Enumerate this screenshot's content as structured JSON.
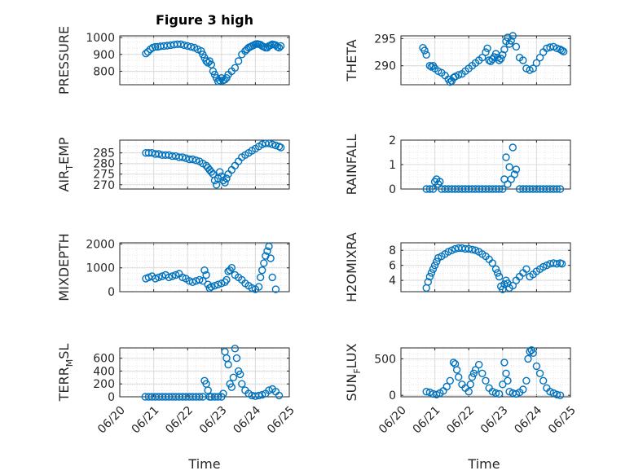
{
  "figure": {
    "title": "Figure 3 high",
    "marker_color": "#0072bd",
    "axis_color": "#262626",
    "grid": true
  },
  "chart_data": [
    {
      "id": "pressure",
      "type": "scatter",
      "ylabel": "PRESSURE",
      "title": "Figure 3 high",
      "xlim": [
        0,
        5
      ],
      "ylim": [
        720,
        1010
      ],
      "yticks": [
        800,
        900,
        1000
      ],
      "yticklabels": [
        "800",
        "900",
        "1000"
      ],
      "x": [
        0.77,
        0.83,
        0.9,
        0.97,
        1.05,
        1.12,
        1.2,
        1.3,
        1.4,
        1.5,
        1.6,
        1.7,
        1.8,
        1.9,
        2.0,
        2.1,
        2.2,
        2.3,
        2.4,
        2.45,
        2.5,
        2.55,
        2.6,
        2.65,
        2.7,
        2.75,
        2.8,
        2.85,
        2.9,
        2.95,
        3.0,
        3.05,
        3.1,
        3.15,
        3.2,
        3.3,
        3.4,
        3.5,
        3.6,
        3.7,
        3.75,
        3.8,
        3.85,
        3.9,
        3.95,
        4.0,
        4.05,
        4.1,
        4.15,
        4.2,
        4.25,
        4.3,
        4.35,
        4.4,
        4.45,
        4.5,
        4.55,
        4.6,
        4.65,
        4.7,
        4.75
      ],
      "y": [
        905,
        915,
        930,
        940,
        945,
        945,
        948,
        950,
        952,
        955,
        958,
        960,
        960,
        955,
        950,
        945,
        940,
        930,
        920,
        900,
        880,
        860,
        850,
        860,
        840,
        800,
        780,
        760,
        740,
        745,
        760,
        745,
        750,
        760,
        780,
        800,
        820,
        860,
        900,
        920,
        930,
        940,
        945,
        950,
        955,
        960,
        962,
        960,
        958,
        950,
        945,
        940,
        940,
        950,
        955,
        960,
        958,
        955,
        945,
        940,
        950
      ]
    },
    {
      "id": "theta",
      "type": "scatter",
      "ylabel": "THETA",
      "xlim": [
        0,
        5
      ],
      "ylim": [
        286.5,
        295.5
      ],
      "yticks": [
        290,
        295
      ],
      "yticklabels": [
        "290",
        "295"
      ],
      "x": [
        0.65,
        0.7,
        0.75,
        0.85,
        0.9,
        0.95,
        1.0,
        1.1,
        1.2,
        1.3,
        1.4,
        1.45,
        1.5,
        1.55,
        1.6,
        1.7,
        1.8,
        1.9,
        2.0,
        2.1,
        2.2,
        2.3,
        2.4,
        2.5,
        2.55,
        2.6,
        2.65,
        2.7,
        2.75,
        2.8,
        2.85,
        2.9,
        2.95,
        3.0,
        3.05,
        3.1,
        3.15,
        3.2,
        3.25,
        3.3,
        3.4,
        3.5,
        3.6,
        3.7,
        3.8,
        3.9,
        4.0,
        4.1,
        4.2,
        4.3,
        4.4,
        4.5,
        4.6,
        4.7,
        4.75,
        4.8
      ],
      "y": [
        293.3,
        292.8,
        292.0,
        290.0,
        289.8,
        290.0,
        289.5,
        289.0,
        288.7,
        288.2,
        287.5,
        287.0,
        287.2,
        287.8,
        288.0,
        288.3,
        288.5,
        289.0,
        289.5,
        290.0,
        290.5,
        291.0,
        291.5,
        292.5,
        293.2,
        291.0,
        290.8,
        291.2,
        291.6,
        292.2,
        291.5,
        291.0,
        291.3,
        292.0,
        293.0,
        294.5,
        295.2,
        294.0,
        294.6,
        295.5,
        293.5,
        291.5,
        291.0,
        289.5,
        289.2,
        289.5,
        290.5,
        291.5,
        292.5,
        293.2,
        293.4,
        293.5,
        293.2,
        293.0,
        292.8,
        292.6
      ]
    },
    {
      "id": "air_temp",
      "type": "scatter",
      "ylabel": "AIR_TEMP",
      "xlim": [
        0,
        5
      ],
      "ylim": [
        268,
        291
      ],
      "yticks": [
        270,
        275,
        280,
        285
      ],
      "yticklabels": [
        "270",
        "275",
        "280",
        "285"
      ],
      "x": [
        0.77,
        0.85,
        0.95,
        1.05,
        1.15,
        1.25,
        1.35,
        1.45,
        1.55,
        1.65,
        1.75,
        1.85,
        1.95,
        2.05,
        2.15,
        2.25,
        2.35,
        2.45,
        2.55,
        2.6,
        2.65,
        2.7,
        2.75,
        2.8,
        2.85,
        2.9,
        2.95,
        3.0,
        3.05,
        3.1,
        3.15,
        3.2,
        3.3,
        3.4,
        3.5,
        3.6,
        3.7,
        3.8,
        3.9,
        4.0,
        4.1,
        4.2,
        4.3,
        4.4,
        4.5,
        4.6,
        4.7,
        4.75
      ],
      "y": [
        285,
        285,
        285,
        284.5,
        284.5,
        284,
        284,
        284,
        283.5,
        283.5,
        283,
        283,
        282.5,
        282,
        282,
        281.5,
        281,
        280,
        279,
        278,
        277,
        276,
        275,
        272,
        270,
        273,
        276,
        274,
        272,
        271,
        273,
        275,
        277,
        279,
        281,
        283,
        284,
        285,
        286,
        287,
        288,
        289,
        289.5,
        289.5,
        289,
        288.5,
        288,
        287.5
      ]
    },
    {
      "id": "rainfall",
      "type": "scatter",
      "ylabel": "RAINFALL",
      "xlim": [
        0,
        5
      ],
      "ylim": [
        0,
        2
      ],
      "yticks": [
        0,
        1,
        2
      ],
      "yticklabels": [
        "0",
        "1",
        "2"
      ],
      "x": [
        0.75,
        0.85,
        0.95,
        1.0,
        1.05,
        1.1,
        1.15,
        1.2,
        1.3,
        1.4,
        1.5,
        1.6,
        1.7,
        1.8,
        1.9,
        2.0,
        2.1,
        2.2,
        2.3,
        2.4,
        2.5,
        2.6,
        2.7,
        2.8,
        2.9,
        3.0,
        3.05,
        3.1,
        3.15,
        3.2,
        3.25,
        3.3,
        3.35,
        3.4,
        3.5,
        3.6,
        3.7,
        3.8,
        3.9,
        4.0,
        4.1,
        4.2,
        4.3,
        4.4,
        4.5,
        4.6,
        4.7
      ],
      "y": [
        0,
        0,
        0,
        0.3,
        0.4,
        0.2,
        0.3,
        0,
        0,
        0,
        0,
        0,
        0,
        0,
        0,
        0,
        0,
        0,
        0,
        0,
        0,
        0,
        0,
        0,
        0,
        0,
        0.4,
        1.3,
        0.2,
        0.9,
        0.4,
        1.7,
        0.6,
        0.8,
        0,
        0,
        0,
        0,
        0,
        0,
        0,
        0,
        0,
        0,
        0,
        0,
        0
      ]
    },
    {
      "id": "mixdepth",
      "type": "scatter",
      "ylabel": "MIXDEPTH",
      "xlim": [
        0,
        5
      ],
      "ylim": [
        0,
        2050
      ],
      "yticks": [
        0,
        1000,
        2000
      ],
      "yticklabels": [
        "0",
        "1000",
        "2000"
      ],
      "x": [
        0.77,
        0.85,
        0.95,
        1.05,
        1.15,
        1.25,
        1.35,
        1.45,
        1.55,
        1.65,
        1.75,
        1.85,
        1.95,
        2.05,
        2.15,
        2.25,
        2.35,
        2.45,
        2.5,
        2.55,
        2.6,
        2.65,
        2.7,
        2.8,
        2.9,
        3.0,
        3.1,
        3.15,
        3.2,
        3.25,
        3.3,
        3.4,
        3.5,
        3.6,
        3.7,
        3.8,
        3.9,
        4.0,
        4.1,
        4.15,
        4.2,
        4.25,
        4.3,
        4.35,
        4.4,
        4.45,
        4.5,
        4.6
      ],
      "y": [
        550,
        600,
        650,
        550,
        600,
        650,
        700,
        600,
        650,
        700,
        750,
        600,
        550,
        450,
        400,
        450,
        500,
        450,
        900,
        700,
        300,
        150,
        200,
        250,
        300,
        350,
        400,
        500,
        850,
        900,
        1000,
        700,
        600,
        500,
        350,
        250,
        150,
        100,
        200,
        600,
        900,
        1200,
        1500,
        1700,
        1900,
        1400,
        600,
        100
      ]
    },
    {
      "id": "h2omixra",
      "type": "scatter",
      "ylabel": "H2OMIXRA",
      "xlim": [
        0,
        5
      ],
      "ylim": [
        2.5,
        9
      ],
      "yticks": [
        4,
        6,
        8
      ],
      "yticklabels": [
        "4",
        "6",
        "8"
      ],
      "x": [
        0.75,
        0.8,
        0.85,
        0.9,
        0.95,
        1.0,
        1.05,
        1.1,
        1.2,
        1.3,
        1.4,
        1.5,
        1.6,
        1.7,
        1.8,
        1.9,
        2.0,
        2.1,
        2.2,
        2.3,
        2.4,
        2.5,
        2.6,
        2.7,
        2.8,
        2.85,
        2.9,
        2.95,
        3.0,
        3.05,
        3.1,
        3.15,
        3.2,
        3.3,
        3.4,
        3.5,
        3.6,
        3.7,
        3.8,
        3.9,
        4.0,
        4.1,
        4.2,
        4.3,
        4.4,
        4.5,
        4.6,
        4.7,
        4.75
      ],
      "y": [
        3.0,
        3.8,
        4.5,
        5.0,
        5.5,
        6.0,
        6.5,
        7.0,
        7.2,
        7.5,
        7.8,
        8.0,
        8.2,
        8.3,
        8.3,
        8.2,
        8.2,
        8.1,
        8.0,
        7.8,
        7.5,
        7.2,
        6.8,
        6.3,
        5.5,
        5.0,
        4.5,
        3.2,
        2.8,
        3.5,
        4.0,
        3.6,
        3.0,
        3.3,
        4.0,
        4.5,
        5.0,
        5.5,
        4.5,
        4.8,
        5.2,
        5.5,
        5.8,
        6.0,
        6.2,
        6.3,
        6.2,
        6.3,
        6.2
      ]
    },
    {
      "id": "terr_msl",
      "type": "scatter",
      "ylabel": "TERR_MSL",
      "xlim": [
        0,
        5
      ],
      "ylim": [
        0,
        760
      ],
      "yticks": [
        0,
        200,
        400,
        600
      ],
      "yticklabels": [
        "0",
        "200",
        "400",
        "600"
      ],
      "x": [
        0.75,
        0.85,
        0.95,
        1.05,
        1.15,
        1.25,
        1.35,
        1.45,
        1.55,
        1.65,
        1.75,
        1.85,
        1.95,
        2.05,
        2.15,
        2.25,
        2.35,
        2.45,
        2.5,
        2.55,
        2.6,
        2.65,
        2.7,
        2.8,
        2.9,
        3.0,
        3.05,
        3.1,
        3.15,
        3.2,
        3.25,
        3.3,
        3.35,
        3.4,
        3.45,
        3.5,
        3.55,
        3.6,
        3.7,
        3.8,
        3.9,
        4.0,
        4.1,
        4.2,
        4.3,
        4.4,
        4.5,
        4.6,
        4.7
      ],
      "y": [
        0,
        0,
        0,
        0,
        0,
        0,
        0,
        0,
        0,
        0,
        0,
        0,
        0,
        0,
        0,
        0,
        0,
        0,
        250,
        200,
        100,
        0,
        0,
        0,
        0,
        0,
        50,
        700,
        600,
        500,
        200,
        150,
        300,
        750,
        600,
        400,
        350,
        200,
        100,
        50,
        20,
        10,
        20,
        30,
        50,
        100,
        120,
        80,
        20
      ]
    },
    {
      "id": "sun_flux",
      "type": "scatter",
      "ylabel": "SUN_FLUX",
      "xlim": [
        0,
        5
      ],
      "ylim": [
        -20,
        650
      ],
      "yticks": [
        0,
        500
      ],
      "yticklabels": [
        "0",
        "500"
      ],
      "x": [
        0.75,
        0.85,
        0.95,
        1.05,
        1.15,
        1.25,
        1.35,
        1.45,
        1.55,
        1.6,
        1.65,
        1.7,
        1.8,
        1.9,
        2.0,
        2.05,
        2.1,
        2.15,
        2.2,
        2.3,
        2.4,
        2.5,
        2.6,
        2.7,
        2.8,
        2.9,
        3.0,
        3.05,
        3.1,
        3.15,
        3.2,
        3.3,
        3.4,
        3.5,
        3.6,
        3.7,
        3.75,
        3.8,
        3.85,
        3.9,
        4.0,
        4.1,
        4.2,
        4.3,
        4.4,
        4.5,
        4.6,
        4.7
      ],
      "y": [
        50,
        40,
        20,
        10,
        30,
        60,
        120,
        200,
        450,
        430,
        350,
        250,
        150,
        100,
        50,
        150,
        250,
        300,
        350,
        420,
        300,
        200,
        100,
        50,
        30,
        20,
        150,
        450,
        300,
        200,
        50,
        30,
        20,
        40,
        80,
        200,
        500,
        600,
        620,
        580,
        400,
        300,
        200,
        100,
        50,
        30,
        10,
        0
      ]
    }
  ],
  "xaxis": {
    "xlim": [
      0,
      5
    ],
    "xticks": [
      0,
      1,
      2,
      3,
      4,
      5
    ],
    "xticklabels": [
      "06/20",
      "06/21",
      "06/22",
      "06/23",
      "06/24",
      "06/25"
    ],
    "xlabel": "Time"
  }
}
